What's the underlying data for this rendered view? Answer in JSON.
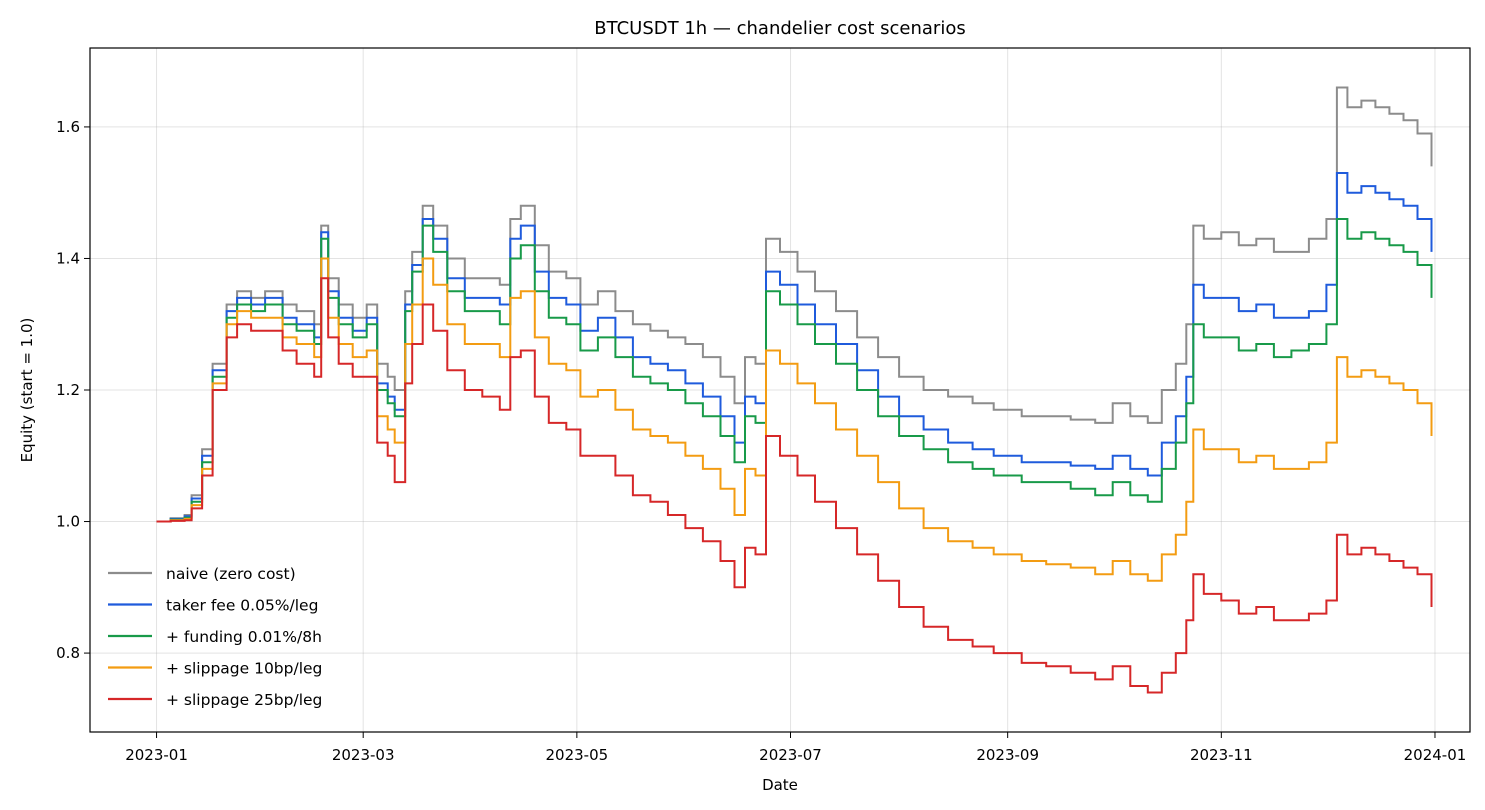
{
  "chart_data": {
    "type": "line",
    "title": "BTCUSDT 1h — chandelier cost scenarios",
    "xlabel": "Date",
    "ylabel": "Equity (start = 1.0)",
    "xlim": [
      "2022-12-13",
      "2024-01-11"
    ],
    "ylim": [
      0.68,
      1.72
    ],
    "x_ticks": [
      "2023-01-01",
      "2023-03-01",
      "2023-05-01",
      "2023-07-01",
      "2023-09-01",
      "2023-11-01",
      "2024-01-01"
    ],
    "x_tick_labels": [
      "2023-01",
      "2023-03",
      "2023-05",
      "2023-07",
      "2023-09",
      "2023-11",
      "2024-01"
    ],
    "y_ticks": [
      0.8,
      1.0,
      1.2,
      1.4,
      1.6
    ],
    "y_tick_labels": [
      "0.8",
      "1.0",
      "1.2",
      "1.4",
      "1.6"
    ],
    "grid": true,
    "legend_position": "lower-left",
    "x": [
      "2023-01-01",
      "2023-01-05",
      "2023-01-09",
      "2023-01-11",
      "2023-01-14",
      "2023-01-17",
      "2023-01-21",
      "2023-01-24",
      "2023-01-28",
      "2023-02-01",
      "2023-02-06",
      "2023-02-10",
      "2023-02-15",
      "2023-02-17",
      "2023-02-19",
      "2023-02-22",
      "2023-02-26",
      "2023-03-02",
      "2023-03-05",
      "2023-03-08",
      "2023-03-10",
      "2023-03-13",
      "2023-03-15",
      "2023-03-18",
      "2023-03-21",
      "2023-03-25",
      "2023-03-30",
      "2023-04-04",
      "2023-04-09",
      "2023-04-12",
      "2023-04-15",
      "2023-04-19",
      "2023-04-23",
      "2023-04-28",
      "2023-05-02",
      "2023-05-07",
      "2023-05-12",
      "2023-05-17",
      "2023-05-22",
      "2023-05-27",
      "2023-06-01",
      "2023-06-06",
      "2023-06-11",
      "2023-06-15",
      "2023-06-18",
      "2023-06-21",
      "2023-06-24",
      "2023-06-28",
      "2023-07-03",
      "2023-07-08",
      "2023-07-14",
      "2023-07-20",
      "2023-07-26",
      "2023-08-01",
      "2023-08-08",
      "2023-08-15",
      "2023-08-22",
      "2023-08-28",
      "2023-09-05",
      "2023-09-12",
      "2023-09-19",
      "2023-09-26",
      "2023-10-01",
      "2023-10-06",
      "2023-10-11",
      "2023-10-15",
      "2023-10-19",
      "2023-10-22",
      "2023-10-24",
      "2023-10-27",
      "2023-11-01",
      "2023-11-06",
      "2023-11-11",
      "2023-11-16",
      "2023-11-21",
      "2023-11-26",
      "2023-12-01",
      "2023-12-04",
      "2023-12-07",
      "2023-12-11",
      "2023-12-15",
      "2023-12-19",
      "2023-12-23",
      "2023-12-27",
      "2023-12-31"
    ],
    "series": [
      {
        "name": "naive (zero cost)",
        "color": "#8c8c8c",
        "values": [
          1.0,
          1.005,
          1.01,
          1.04,
          1.11,
          1.24,
          1.33,
          1.35,
          1.34,
          1.35,
          1.33,
          1.32,
          1.3,
          1.45,
          1.37,
          1.33,
          1.31,
          1.33,
          1.24,
          1.22,
          1.2,
          1.35,
          1.41,
          1.48,
          1.45,
          1.4,
          1.37,
          1.37,
          1.36,
          1.46,
          1.48,
          1.42,
          1.38,
          1.37,
          1.33,
          1.35,
          1.32,
          1.3,
          1.29,
          1.28,
          1.27,
          1.25,
          1.22,
          1.18,
          1.25,
          1.24,
          1.43,
          1.41,
          1.38,
          1.35,
          1.32,
          1.28,
          1.25,
          1.22,
          1.2,
          1.19,
          1.18,
          1.17,
          1.16,
          1.16,
          1.155,
          1.15,
          1.18,
          1.16,
          1.15,
          1.2,
          1.24,
          1.3,
          1.45,
          1.43,
          1.44,
          1.42,
          1.43,
          1.41,
          1.41,
          1.43,
          1.46,
          1.66,
          1.63,
          1.64,
          1.63,
          1.62,
          1.61,
          1.59,
          1.54
        ]
      },
      {
        "name": "taker fee 0.05%/leg",
        "color": "#1f5bdc",
        "values": [
          1.0,
          1.004,
          1.008,
          1.035,
          1.1,
          1.23,
          1.32,
          1.34,
          1.33,
          1.34,
          1.31,
          1.3,
          1.28,
          1.44,
          1.35,
          1.31,
          1.29,
          1.31,
          1.21,
          1.19,
          1.17,
          1.33,
          1.39,
          1.46,
          1.43,
          1.37,
          1.34,
          1.34,
          1.33,
          1.43,
          1.45,
          1.38,
          1.34,
          1.33,
          1.29,
          1.31,
          1.28,
          1.25,
          1.24,
          1.23,
          1.21,
          1.19,
          1.16,
          1.12,
          1.19,
          1.18,
          1.38,
          1.36,
          1.33,
          1.3,
          1.27,
          1.23,
          1.19,
          1.16,
          1.14,
          1.12,
          1.11,
          1.1,
          1.09,
          1.09,
          1.085,
          1.08,
          1.1,
          1.08,
          1.07,
          1.12,
          1.16,
          1.22,
          1.36,
          1.34,
          1.34,
          1.32,
          1.33,
          1.31,
          1.31,
          1.32,
          1.36,
          1.53,
          1.5,
          1.51,
          1.5,
          1.49,
          1.48,
          1.46,
          1.41
        ]
      },
      {
        "name": "+ funding 0.01%/8h",
        "color": "#189a49",
        "values": [
          1.0,
          1.003,
          1.006,
          1.03,
          1.09,
          1.22,
          1.31,
          1.33,
          1.32,
          1.33,
          1.3,
          1.29,
          1.27,
          1.43,
          1.34,
          1.3,
          1.28,
          1.3,
          1.2,
          1.18,
          1.16,
          1.32,
          1.38,
          1.45,
          1.41,
          1.35,
          1.32,
          1.32,
          1.3,
          1.4,
          1.42,
          1.35,
          1.31,
          1.3,
          1.26,
          1.28,
          1.25,
          1.22,
          1.21,
          1.2,
          1.18,
          1.16,
          1.13,
          1.09,
          1.16,
          1.15,
          1.35,
          1.33,
          1.3,
          1.27,
          1.24,
          1.2,
          1.16,
          1.13,
          1.11,
          1.09,
          1.08,
          1.07,
          1.06,
          1.06,
          1.05,
          1.04,
          1.06,
          1.04,
          1.03,
          1.08,
          1.12,
          1.18,
          1.3,
          1.28,
          1.28,
          1.26,
          1.27,
          1.25,
          1.26,
          1.27,
          1.3,
          1.46,
          1.43,
          1.44,
          1.43,
          1.42,
          1.41,
          1.39,
          1.34
        ]
      },
      {
        "name": "+ slippage 10bp/leg",
        "color": "#f39c12",
        "values": [
          1.0,
          1.002,
          1.004,
          1.025,
          1.08,
          1.21,
          1.3,
          1.32,
          1.31,
          1.31,
          1.28,
          1.27,
          1.25,
          1.4,
          1.31,
          1.27,
          1.25,
          1.26,
          1.16,
          1.14,
          1.12,
          1.27,
          1.33,
          1.4,
          1.36,
          1.3,
          1.27,
          1.27,
          1.25,
          1.34,
          1.35,
          1.28,
          1.24,
          1.23,
          1.19,
          1.2,
          1.17,
          1.14,
          1.13,
          1.12,
          1.1,
          1.08,
          1.05,
          1.01,
          1.08,
          1.07,
          1.26,
          1.24,
          1.21,
          1.18,
          1.14,
          1.1,
          1.06,
          1.02,
          0.99,
          0.97,
          0.96,
          0.95,
          0.94,
          0.935,
          0.93,
          0.92,
          0.94,
          0.92,
          0.91,
          0.95,
          0.98,
          1.03,
          1.14,
          1.11,
          1.11,
          1.09,
          1.1,
          1.08,
          1.08,
          1.09,
          1.12,
          1.25,
          1.22,
          1.23,
          1.22,
          1.21,
          1.2,
          1.18,
          1.13
        ]
      },
      {
        "name": "+ slippage 25bp/leg",
        "color": "#d62728",
        "values": [
          1.0,
          1.001,
          1.002,
          1.02,
          1.07,
          1.2,
          1.28,
          1.3,
          1.29,
          1.29,
          1.26,
          1.24,
          1.22,
          1.37,
          1.28,
          1.24,
          1.22,
          1.22,
          1.12,
          1.1,
          1.06,
          1.21,
          1.27,
          1.33,
          1.29,
          1.23,
          1.2,
          1.19,
          1.17,
          1.25,
          1.26,
          1.19,
          1.15,
          1.14,
          1.1,
          1.1,
          1.07,
          1.04,
          1.03,
          1.01,
          0.99,
          0.97,
          0.94,
          0.9,
          0.96,
          0.95,
          1.13,
          1.1,
          1.07,
          1.03,
          0.99,
          0.95,
          0.91,
          0.87,
          0.84,
          0.82,
          0.81,
          0.8,
          0.785,
          0.78,
          0.77,
          0.76,
          0.78,
          0.75,
          0.74,
          0.77,
          0.8,
          0.85,
          0.92,
          0.89,
          0.88,
          0.86,
          0.87,
          0.85,
          0.85,
          0.86,
          0.88,
          0.98,
          0.95,
          0.96,
          0.95,
          0.94,
          0.93,
          0.92,
          0.87
        ]
      }
    ]
  }
}
